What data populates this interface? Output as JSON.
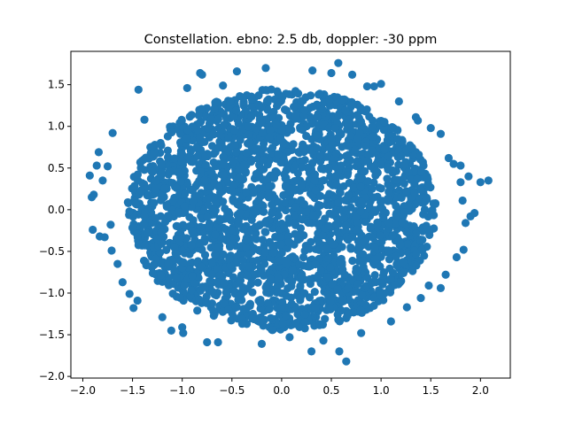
{
  "chart_data": {
    "type": "scatter",
    "title": "Constellation. ebno: 2.5 db, doppler: -30 ppm",
    "xlabel": "",
    "ylabel": "",
    "xlim": [
      -2.12,
      2.3
    ],
    "ylim": [
      -2.02,
      1.9
    ],
    "xticks": [
      -2.0,
      -1.5,
      -1.0,
      -0.5,
      0.0,
      0.5,
      1.0,
      1.5,
      2.0
    ],
    "xtick_labels": [
      "−2.0",
      "−1.5",
      "−1.0",
      "−0.5",
      "0.0",
      "0.5",
      "1.0",
      "1.5",
      "2.0"
    ],
    "yticks": [
      -2.0,
      -1.5,
      -1.0,
      -0.5,
      0.0,
      0.5,
      1.0,
      1.5
    ],
    "ytick_labels": [
      "−2.0",
      "−1.5",
      "−1.0",
      "−0.5",
      "0.0",
      "0.5",
      "1.0",
      "1.5"
    ],
    "grid": false,
    "legend": "none",
    "color": "#1f77b4",
    "cloud": {
      "center": [
        0.0,
        0.0
      ],
      "x_radius": 1.55,
      "y_radius": 1.45,
      "count": 2600,
      "seed": 7
    },
    "points": [
      [
        -1.93,
        0.41
      ],
      [
        -1.91,
        0.15
      ],
      [
        -1.89,
        0.18
      ],
      [
        -1.84,
        0.69
      ],
      [
        -1.8,
        0.35
      ],
      [
        -1.9,
        -0.24
      ],
      [
        -1.83,
        -0.32
      ],
      [
        -1.78,
        -0.33
      ],
      [
        -1.7,
        0.92
      ],
      [
        -1.71,
        -0.49
      ],
      [
        -1.65,
        -0.65
      ],
      [
        -1.6,
        -0.87
      ],
      [
        -1.53,
        -1.01
      ],
      [
        -1.49,
        -1.18
      ],
      [
        -1.45,
        -1.09
      ],
      [
        -1.44,
        1.44
      ],
      [
        -1.38,
        1.08
      ],
      [
        -1.2,
        -1.29
      ],
      [
        -1.11,
        -1.45
      ],
      [
        -1.0,
        -1.41
      ],
      [
        -0.99,
        -1.48
      ],
      [
        -0.95,
        1.46
      ],
      [
        -0.82,
        1.64
      ],
      [
        -0.8,
        1.62
      ],
      [
        -0.75,
        -1.59
      ],
      [
        -0.64,
        -1.59
      ],
      [
        -0.59,
        1.49
      ],
      [
        -0.45,
        1.66
      ],
      [
        -0.2,
        -1.61
      ],
      [
        -0.16,
        1.7
      ],
      [
        0.08,
        -1.53
      ],
      [
        0.3,
        -1.7
      ],
      [
        0.31,
        1.67
      ],
      [
        0.42,
        -1.57
      ],
      [
        0.5,
        1.64
      ],
      [
        0.57,
        1.76
      ],
      [
        0.58,
        -1.7
      ],
      [
        0.65,
        -1.82
      ],
      [
        0.71,
        1.62
      ],
      [
        0.8,
        -1.48
      ],
      [
        0.86,
        1.48
      ],
      [
        0.93,
        1.48
      ],
      [
        1.0,
        1.51
      ],
      [
        1.1,
        -1.34
      ],
      [
        1.18,
        1.3
      ],
      [
        1.26,
        -1.17
      ],
      [
        1.35,
        1.11
      ],
      [
        1.37,
        1.07
      ],
      [
        1.4,
        -1.06
      ],
      [
        1.5,
        0.98
      ],
      [
        1.48,
        -0.91
      ],
      [
        1.6,
        0.91
      ],
      [
        1.6,
        -0.94
      ],
      [
        1.65,
        -0.78
      ],
      [
        1.68,
        0.62
      ],
      [
        1.73,
        0.55
      ],
      [
        1.76,
        -0.57
      ],
      [
        1.8,
        0.53
      ],
      [
        1.8,
        0.33
      ],
      [
        1.83,
        -0.48
      ],
      [
        1.85,
        -0.16
      ],
      [
        1.88,
        0.4
      ],
      [
        1.9,
        -0.08
      ],
      [
        2.0,
        0.33
      ],
      [
        2.08,
        0.35
      ],
      [
        1.94,
        -0.04
      ],
      [
        1.82,
        0.11
      ],
      [
        -1.75,
        0.52
      ],
      [
        -1.72,
        -0.18
      ],
      [
        -1.86,
        0.53
      ]
    ]
  }
}
